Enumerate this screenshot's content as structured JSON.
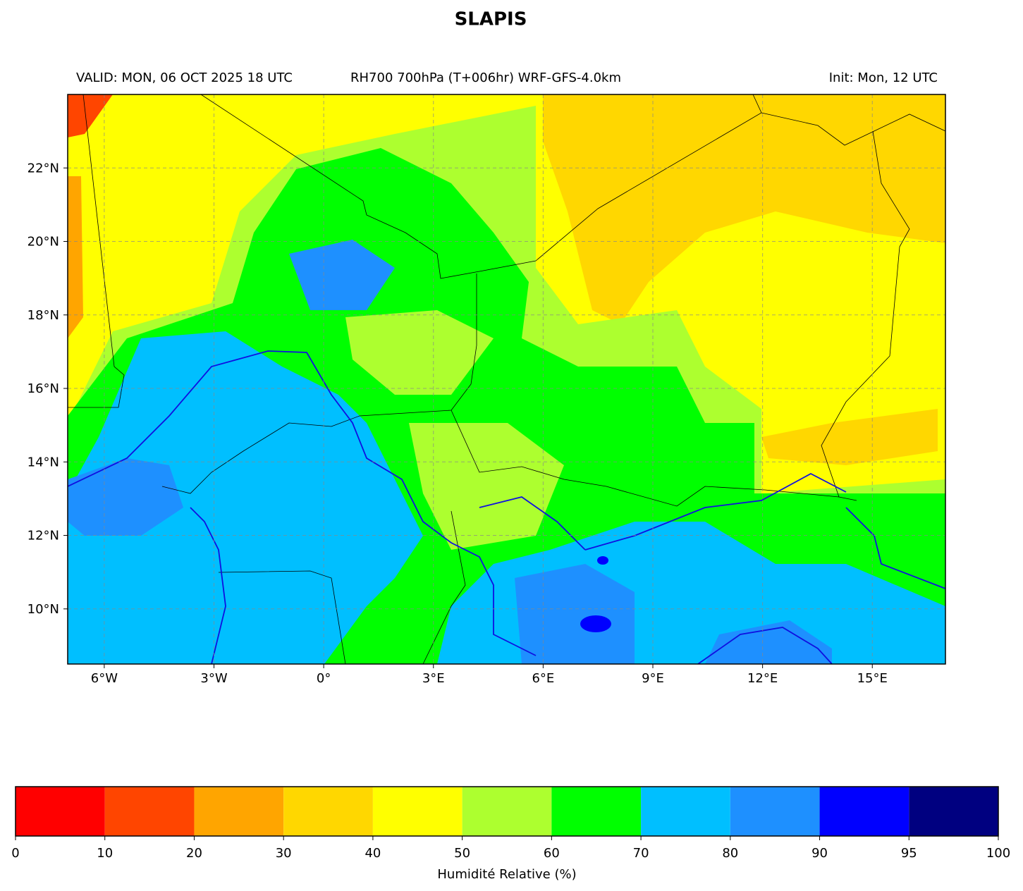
{
  "title": "SLAPIS",
  "header": {
    "valid": "VALID: MON, 06 OCT 2025 18 UTC",
    "field": "RH700 700hPa (T+006hr) WRF-GFS-4.0km",
    "init": "Init: Mon, 12 UTC"
  },
  "map": {
    "xlim": [
      -7,
      17
    ],
    "ylim": [
      8.5,
      24
    ],
    "xticks": [
      {
        "value": -6,
        "label": "6°W"
      },
      {
        "value": -3,
        "label": "3°W"
      },
      {
        "value": 0,
        "label": "0°"
      },
      {
        "value": 3,
        "label": "3°E"
      },
      {
        "value": 6,
        "label": "6°E"
      },
      {
        "value": 9,
        "label": "9°E"
      },
      {
        "value": 12,
        "label": "12°E"
      },
      {
        "value": 15,
        "label": "15°E"
      }
    ],
    "yticks": [
      {
        "value": 10,
        "label": "10°N"
      },
      {
        "value": 12,
        "label": "12°N"
      },
      {
        "value": 14,
        "label": "14°N"
      },
      {
        "value": 16,
        "label": "16°N"
      },
      {
        "value": 18,
        "label": "18°N"
      },
      {
        "value": 20,
        "label": "20°N"
      },
      {
        "value": 22,
        "label": "22°N"
      }
    ],
    "grid": true
  },
  "colorbar": {
    "label": "Humidité Relative (%)",
    "bounds": [
      0,
      10,
      20,
      30,
      40,
      50,
      60,
      70,
      80,
      90,
      95,
      100
    ],
    "colors": [
      "#ff0000",
      "#ff4500",
      "#ffa500",
      "#ffd700",
      "#ffff00",
      "#adff2f",
      "#00ff00",
      "#00bfff",
      "#1e90ff",
      "#0000ff",
      "#000080"
    ]
  }
}
